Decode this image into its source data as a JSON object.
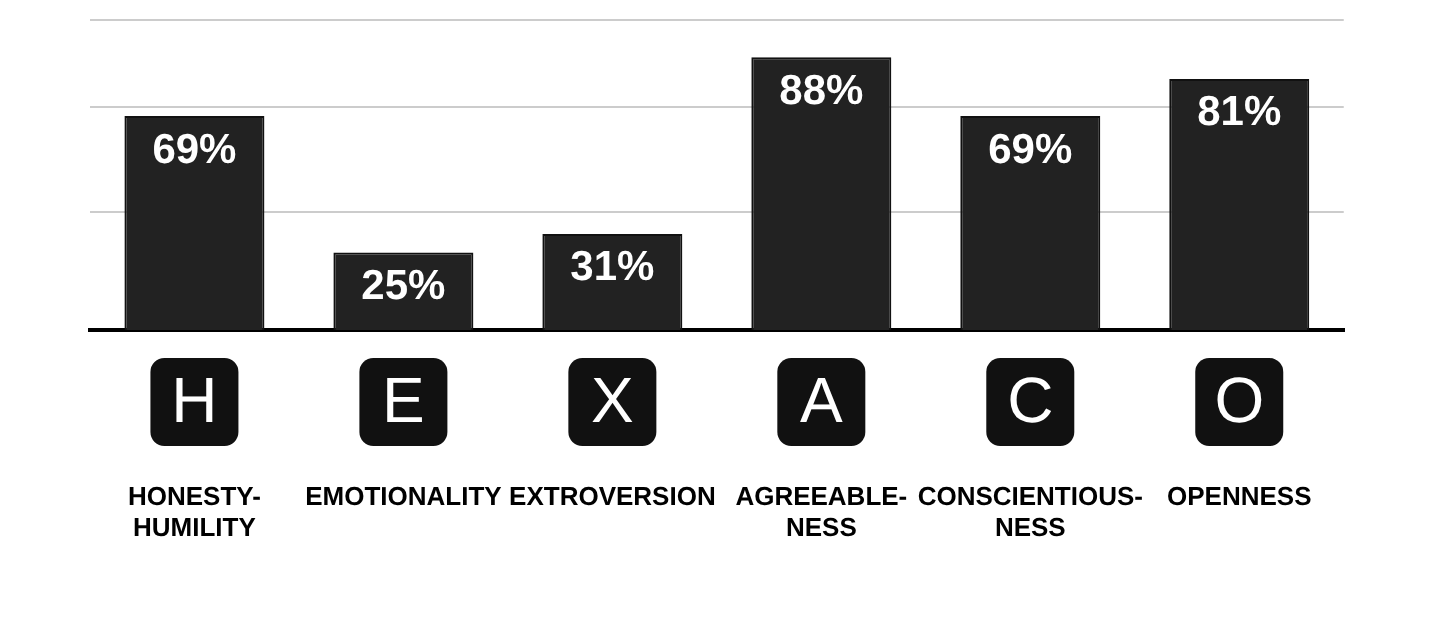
{
  "chart_data": {
    "type": "bar",
    "categories": [
      "HONESTY-HUMILITY",
      "EMOTIONALITY",
      "EXTROVERSION",
      "AGREEABLE-NESS",
      "CONSCIENTIOUS-NESS",
      "OPENNESS"
    ],
    "values": [
      69,
      25,
      31,
      88,
      69,
      81
    ],
    "value_labels": [
      "69%",
      "25%",
      "31%",
      "88%",
      "69%",
      "81%"
    ],
    "color": "#222222",
    "annotations": [
      "H",
      "E",
      "X",
      "A",
      "C",
      "O"
    ],
    "ylim": [
      0,
      100
    ],
    "yticks": [
      {
        "value": 38,
        "label": null
      },
      {
        "value": 72,
        "label": null
      },
      {
        "value": 100,
        "label": null
      }
    ],
    "grid": "y",
    "legend": false
  }
}
